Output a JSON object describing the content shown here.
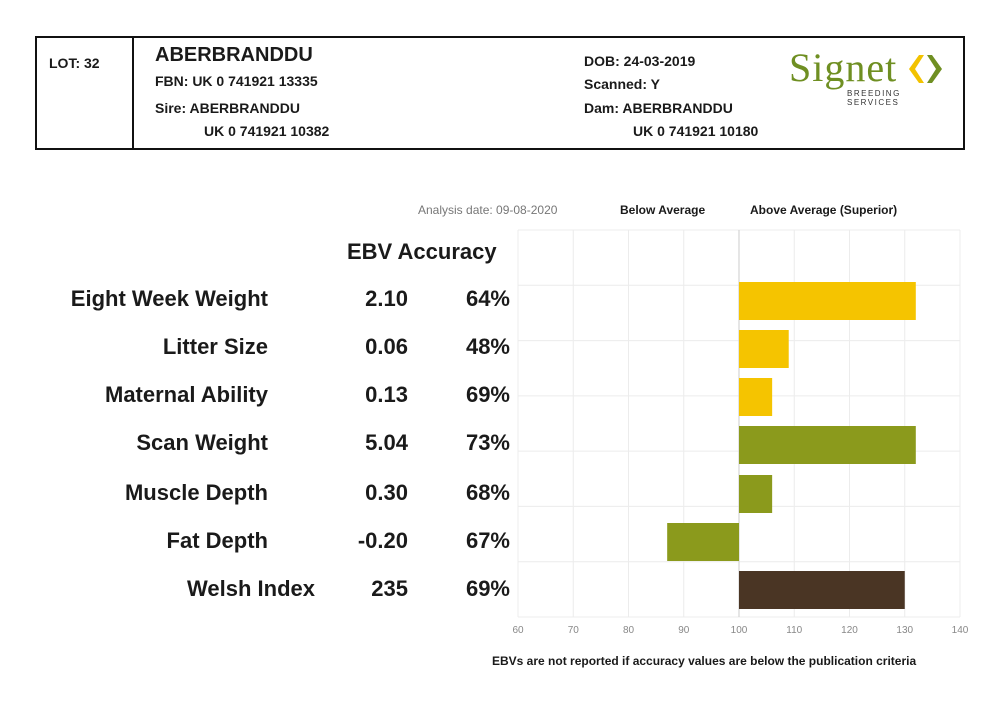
{
  "header": {
    "lot": "LOT: 32",
    "name": "ABERBRANDDU",
    "fbn": "FBN: UK 0 741921 13335",
    "sire": "Sire: ABERBRANDDU",
    "sire_id": "UK 0 741921 10382",
    "dob": "DOB: 24-03-2019",
    "scanned": "Scanned: Y",
    "dam": "Dam: ABERBRANDDU",
    "dam_id": "UK 0 741921 10180"
  },
  "logo": {
    "word": "Signet",
    "subtitle": "BREEDING SERVICES",
    "color": "#6f8f22",
    "mark_colors": [
      "#f2c200",
      "#6f8f22"
    ]
  },
  "meta": {
    "analysis_date": "Analysis date: 09-08-2020",
    "below_average": "Below Average",
    "above_average": "Above Average (Superior)"
  },
  "table": {
    "heading": "EBV Accuracy"
  },
  "traits": [
    {
      "name": "Eight Week Weight",
      "ebv": "2.10",
      "accuracy": "64%",
      "color": "#f5c400"
    },
    {
      "name": "Litter Size",
      "ebv": "0.06",
      "accuracy": "48%",
      "color": "#f5c400"
    },
    {
      "name": "Maternal Ability",
      "ebv": "0.13",
      "accuracy": "69%",
      "color": "#f5c400"
    },
    {
      "name": "Scan Weight",
      "ebv": "5.04",
      "accuracy": "73%",
      "color": "#8b9a1c"
    },
    {
      "name": "Muscle Depth",
      "ebv": "0.30",
      "accuracy": "68%",
      "color": "#8b9a1c"
    },
    {
      "name": "Fat Depth",
      "ebv": "-0.20",
      "accuracy": "67%",
      "color": "#8b9a1c"
    },
    {
      "name": "Welsh Index",
      "ebv": "235",
      "accuracy": "69%",
      "color": "#4a3524"
    }
  ],
  "chart_data": {
    "type": "bar",
    "orientation": "horizontal",
    "baseline": 100,
    "xlim": [
      60,
      140
    ],
    "xticks": [
      60,
      70,
      80,
      90,
      100,
      110,
      120,
      130,
      140
    ],
    "grid": true,
    "categories": [
      "Eight Week Weight",
      "Litter Size",
      "Maternal Ability",
      "Scan Weight",
      "Muscle Depth",
      "Fat Depth",
      "Welsh Index"
    ],
    "values": [
      132,
      109,
      106,
      132,
      106,
      87,
      130
    ]
  },
  "footnote": "EBVs are not reported if accuracy values are below the publication criteria"
}
